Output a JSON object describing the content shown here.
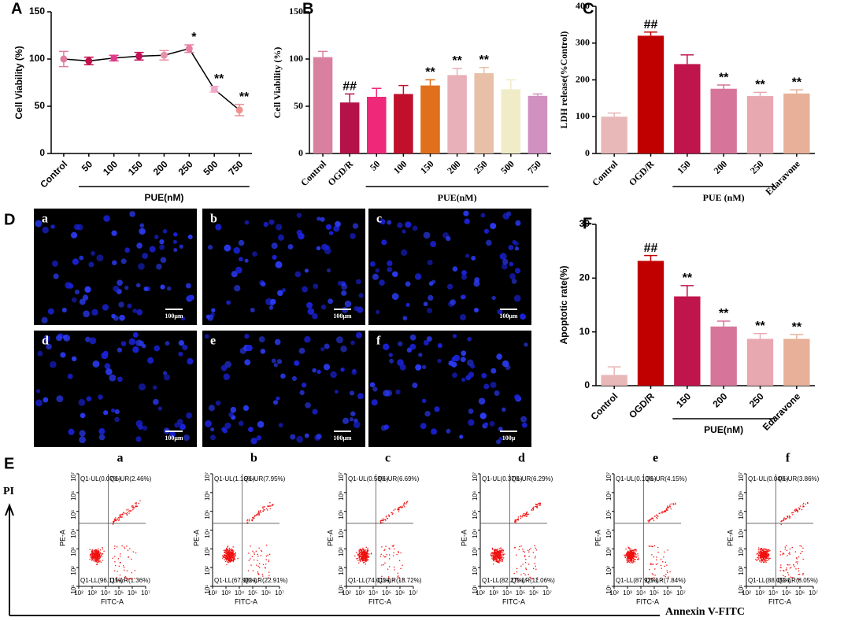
{
  "chart_data": [
    {
      "panel": "A",
      "type": "line",
      "ylabel": "Cell Viability (%)",
      "categories": [
        "Control",
        "50",
        "100",
        "150",
        "200",
        "250",
        "500",
        "750"
      ],
      "values": [
        100,
        98,
        101,
        103,
        104,
        111,
        68,
        46
      ],
      "errors": [
        8,
        4,
        3,
        4,
        5,
        4,
        3,
        6
      ],
      "annotations": [
        null,
        null,
        null,
        null,
        null,
        "*",
        "**",
        "**"
      ],
      "colors": [
        "#e07ca0",
        "#c0104e",
        "#e03a88",
        "#c0105a",
        "#e890a8",
        "#e67fa3",
        "#f0a8c8",
        "#f09090"
      ],
      "group_label": "PUE(nM)",
      "ylim": [
        0,
        150
      ],
      "yticks": [
        0,
        50,
        100,
        150
      ]
    },
    {
      "panel": "B",
      "type": "bar",
      "ylabel": "Cell Viability (%)",
      "categories": [
        "Control",
        "OGD/R",
        "50",
        "100",
        "150",
        "200",
        "250",
        "500",
        "750"
      ],
      "values": [
        102,
        54,
        60,
        63,
        72,
        83,
        85,
        68,
        61
      ],
      "errors": [
        6,
        9,
        9,
        9,
        6,
        7,
        6,
        10,
        2
      ],
      "annotations": [
        null,
        "##",
        null,
        null,
        "**",
        "**",
        "**",
        null,
        null
      ],
      "colors": [
        "#d97fa0",
        "#b5124a",
        "#f0287a",
        "#c0102c",
        "#e0701c",
        "#e8b0b8",
        "#e8c0a8",
        "#f0ecc8",
        "#d090c0"
      ],
      "group_label": "PUE(nM)",
      "ylim": [
        0,
        150
      ],
      "yticks": [
        0,
        50,
        100,
        150
      ]
    },
    {
      "panel": "C",
      "type": "bar",
      "ylabel": "LDH  release(%Control)",
      "categories": [
        "Control",
        "OGD/R",
        "150",
        "200",
        "250",
        "Edaravone"
      ],
      "values": [
        100,
        320,
        243,
        176,
        156,
        163
      ],
      "errors": [
        10,
        10,
        25,
        10,
        10,
        10
      ],
      "annotations": [
        null,
        "##",
        null,
        "**",
        "**",
        "**"
      ],
      "colors": [
        "#e8b8b8",
        "#c00000",
        "#c0144c",
        "#d7749a",
        "#e8a8b0",
        "#e8b098"
      ],
      "group_label": "PUE (nM)",
      "ylim": [
        0,
        400
      ],
      "yticks": [
        0,
        100,
        200,
        300,
        400
      ]
    },
    {
      "panel": "F",
      "type": "bar",
      "ylabel": "Apoptotic rate(%)",
      "categories": [
        "Control",
        "OGD/R",
        "150",
        "200",
        "250",
        "Edaravone"
      ],
      "values": [
        2,
        23.2,
        16.6,
        11,
        8.7,
        8.7
      ],
      "errors": [
        1.5,
        1,
        2,
        1,
        1,
        0.8
      ],
      "annotations": [
        null,
        "##",
        "**",
        "**",
        "**",
        "**"
      ],
      "colors": [
        "#e8b8b8",
        "#c00000",
        "#c0144c",
        "#d7749a",
        "#e8a8b0",
        "#e8b098"
      ],
      "group_label": "PUE(nM)",
      "ylim": [
        0,
        30
      ],
      "yticks": [
        0,
        10,
        20,
        30
      ]
    }
  ],
  "panel_d": {
    "panel": "D",
    "images": [
      {
        "label": "a",
        "scale": "100μm"
      },
      {
        "label": "b",
        "scale": "100μm"
      },
      {
        "label": "c",
        "scale": "100μm"
      },
      {
        "label": "d",
        "scale": "100μm"
      },
      {
        "label": "e",
        "scale": "100μm"
      },
      {
        "label": "f",
        "scale": "100μ"
      }
    ]
  },
  "panel_e": {
    "panel": "E",
    "axis_y": "PI",
    "axis_x": "Annexin V-FITC",
    "xlabel": "FITC-A",
    "ylabel": "PE-A",
    "xticks": [
      "10²",
      "10³",
      "10⁴",
      "10⁵",
      "10⁶",
      "10⁷"
    ],
    "yticks": [
      "10¹",
      "10²",
      "10³",
      "10⁴",
      "10⁵",
      "10⁶",
      "10⁷"
    ],
    "plots": [
      {
        "label": "a",
        "quadrants": [
          "Q1-UL(0.07%)",
          "Q1-UR(2.46%)",
          "Q1-LL(96.11%)",
          "Q1-LR(1.36%)"
        ]
      },
      {
        "label": "b",
        "quadrants": [
          "Q1-UL(1.16%)",
          "Q1-UR(7.95%)",
          "Q1-LL(67.98%)",
          "Q1-LR(22.91%)"
        ]
      },
      {
        "label": "c",
        "quadrants": [
          "Q1-UL(0.58%)",
          "Q1-UR(6.69%)",
          "Q1-LL(74.01%)",
          "Q1-LR(18.72%)"
        ]
      },
      {
        "label": "d",
        "quadrants": [
          "Q1-UL(0.37%)",
          "Q1-UR(6.29%)",
          "Q1-LL(82.27%)",
          "Q1-LR(11.06%)"
        ]
      },
      {
        "label": "e",
        "quadrants": [
          "Q1-UL(0.10%)",
          "Q1-UR(4.15%)",
          "Q1-LL(87.92%)",
          "Q1-LR(7.84%)"
        ]
      },
      {
        "label": "f",
        "quadrants": [
          "Q1-UL(0.04%)",
          "Q1-UR(3.86%)",
          "Q1-LL(88.05%)",
          "Q1-LR(8.05%)"
        ]
      }
    ]
  }
}
